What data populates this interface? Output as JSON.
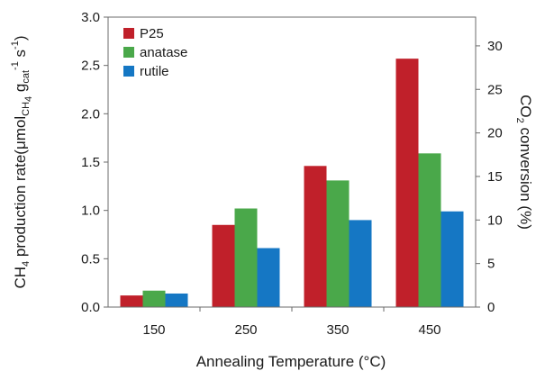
{
  "chart_data": {
    "type": "bar",
    "categories": [
      "150",
      "250",
      "350",
      "450"
    ],
    "series": [
      {
        "name": "P25",
        "color": "#c0202a",
        "values": [
          0.12,
          0.85,
          1.46,
          2.57
        ]
      },
      {
        "name": "anatase",
        "color": "#4aa84a",
        "values": [
          0.17,
          1.02,
          1.31,
          1.59
        ]
      },
      {
        "name": "rutile",
        "color": "#1577c4",
        "values": [
          0.14,
          0.61,
          0.9,
          0.99
        ]
      }
    ],
    "xlabel": "Annealing Temperature (°C)",
    "ylabel": "CH4 production rate(μmolCH4 gcat-1 s-1)",
    "ylabel_parts": {
      "main": "CH",
      "sub1": "4",
      "mid": " production rate(μmol",
      "sub2": "CH",
      "sub2b": "4",
      "mid2": " g",
      "sub3": "cat",
      "sup1": "-1",
      "mid3": " s",
      "sup2": "-1",
      "end": ")"
    },
    "ylim": [
      0,
      3.0
    ],
    "yticks": [
      "0.0",
      "0.5",
      "1.0",
      "1.5",
      "2.0",
      "2.5",
      "3.0"
    ],
    "y2label": "CO2 conversion (%)",
    "y2label_parts": {
      "main": "CO",
      "sub": "2",
      "end": " conversion (%)"
    },
    "y2lim": [
      0,
      33.3
    ],
    "y2ticks": [
      "0",
      "5",
      "10",
      "15",
      "20",
      "25",
      "30"
    ],
    "legend_position": "top-left",
    "grid": false
  }
}
